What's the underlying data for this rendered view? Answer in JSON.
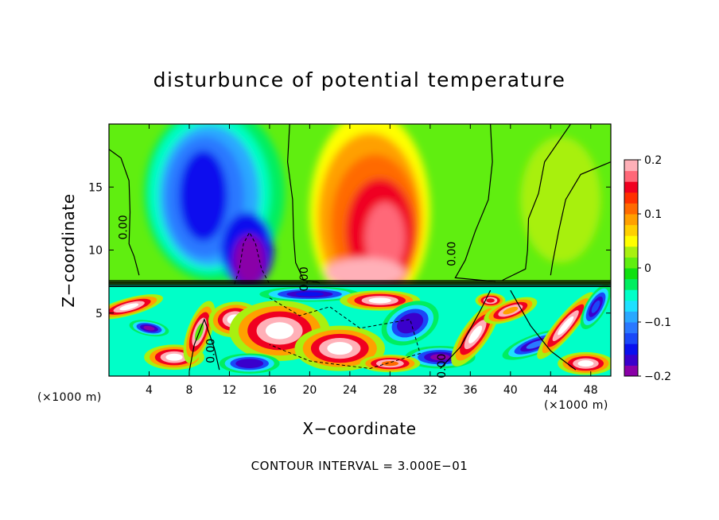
{
  "chart_data": {
    "type": "heatmap",
    "title": "disturbunce of potential temperature",
    "xlabel": "X−coordinate",
    "ylabel": "Z−coordinate",
    "x_unit": "(×1000 m)",
    "z_unit": "(×1000 m)",
    "caption": "CONTOUR INTERVAL = 3.000E−01",
    "xlim": [
      0,
      50
    ],
    "ylim": [
      0,
      20
    ],
    "x_ticks": [
      4,
      8,
      12,
      16,
      20,
      24,
      28,
      32,
      36,
      40,
      44,
      48
    ],
    "x_tick_labels": [
      "4",
      "8",
      "12",
      "16",
      "20",
      "24",
      "28",
      "32",
      "36",
      "40",
      "44",
      "48"
    ],
    "y_ticks": [
      5,
      10,
      15
    ],
    "y_tick_labels": [
      "5",
      "10",
      "15"
    ],
    "colorbar": {
      "range": [
        -0.2,
        0.2
      ],
      "ticks": [
        0.2,
        0.1,
        0,
        -0.1,
        -0.2
      ],
      "tick_labels": [
        "0.2",
        "0.1",
        "0",
        "−0.1",
        "−0.2"
      ],
      "colors": [
        "#8a00a8",
        "#3a00cc",
        "#0a10ee",
        "#1a48f8",
        "#2a78ff",
        "#2aa8ff",
        "#1ee0ff",
        "#00ffc8",
        "#00ee60",
        "#10e010",
        "#60ee10",
        "#a8f010",
        "#ffff00",
        "#ffd000",
        "#ffa000",
        "#ff6a00",
        "#ff3000",
        "#f00020",
        "#ff6878",
        "#ffb0b8"
      ]
    },
    "contour_labels": [
      {
        "text": "0.00",
        "x": 1.8,
        "z": 11.8
      },
      {
        "text": "0.00",
        "x": 19.8,
        "z": 7.7
      },
      {
        "text": "0.00",
        "x": 34.5,
        "z": 9.7
      },
      {
        "text": "0.00",
        "x": 10.5,
        "z": 2.0
      },
      {
        "text": "0.00",
        "x": 33.5,
        "z": 0.8
      }
    ],
    "field_features": [
      {
        "name": "cold-core",
        "x": 9.3,
        "z": 14.5,
        "value": -0.15
      },
      {
        "name": "cold-core-deep",
        "x": 13.5,
        "z": 10.5,
        "value": -0.2
      },
      {
        "name": "warm-core",
        "x": 27.0,
        "z": 11.5,
        "value": 0.15
      },
      {
        "name": "warm-core-base",
        "x": 26.0,
        "z": 8.5,
        "value": 0.2
      }
    ]
  }
}
